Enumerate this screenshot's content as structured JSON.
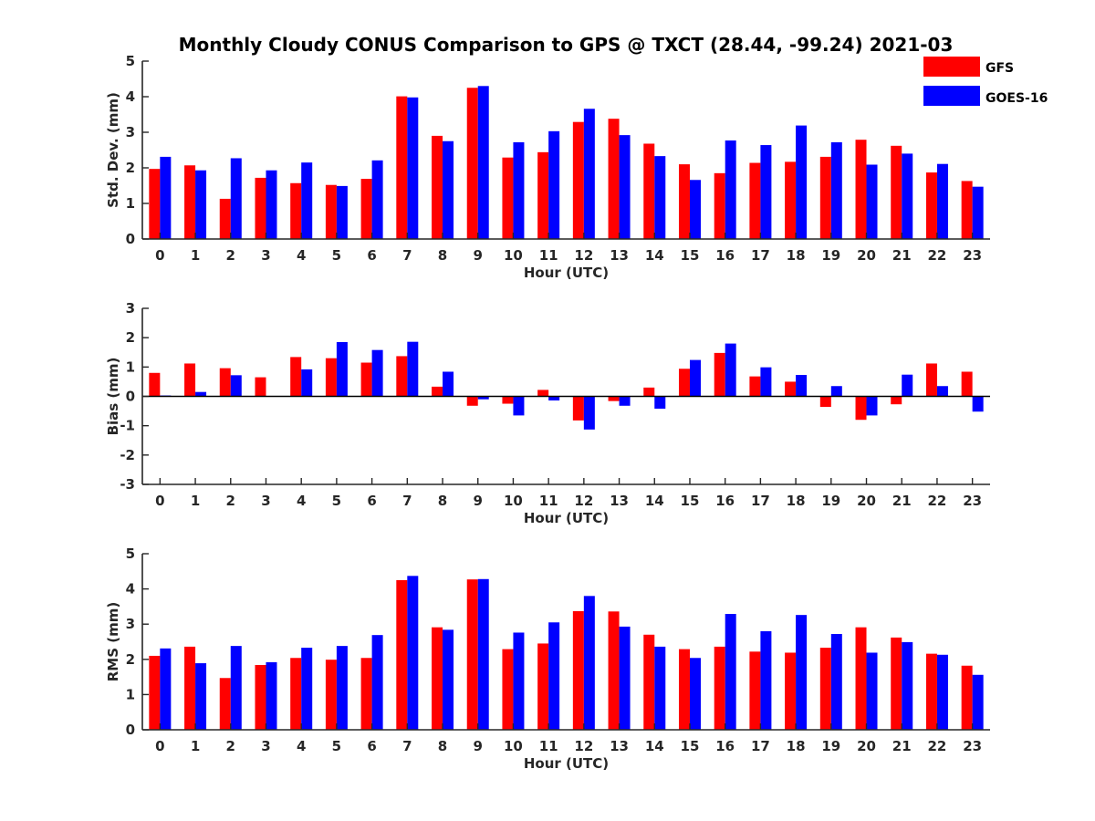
{
  "title": "Monthly Cloudy CONUS Comparison to GPS @ TXCT (28.44, -99.24) 2021-03",
  "colors": {
    "GFS": "#ff0000",
    "GOES-16": "#0000ff",
    "axis": "#262626"
  },
  "legend": {
    "placement": "top-right",
    "entries": [
      "GFS",
      "GOES-16"
    ]
  },
  "chart_data": [
    {
      "type": "bar",
      "ylabel": "Std. Dev. (mm)",
      "xlabel": "Hour (UTC)",
      "ylim": [
        0,
        5
      ],
      "yticks": [
        0,
        1,
        2,
        3,
        4,
        5
      ],
      "categories": [
        "0",
        "1",
        "2",
        "3",
        "4",
        "5",
        "6",
        "7",
        "8",
        "9",
        "10",
        "11",
        "12",
        "13",
        "14",
        "15",
        "16",
        "17",
        "18",
        "19",
        "20",
        "21",
        "22",
        "23"
      ],
      "series": [
        {
          "name": "GFS",
          "values": [
            1.97,
            2.07,
            1.13,
            1.72,
            1.57,
            1.52,
            1.69,
            4.01,
            2.9,
            4.25,
            2.29,
            2.44,
            3.29,
            3.38,
            2.68,
            2.1,
            1.85,
            2.14,
            2.17,
            2.31,
            2.79,
            2.62,
            1.87,
            1.63
          ]
        },
        {
          "name": "GOES-16",
          "values": [
            2.31,
            1.93,
            2.27,
            1.93,
            2.15,
            1.49,
            2.21,
            3.98,
            2.75,
            4.3,
            2.72,
            3.03,
            3.66,
            2.92,
            2.33,
            1.66,
            2.77,
            2.64,
            3.19,
            2.72,
            2.09,
            2.4,
            2.11,
            1.47
          ]
        }
      ]
    },
    {
      "type": "bar",
      "ylabel": "Bias (mm)",
      "xlabel": "Hour (UTC)",
      "ylim": [
        -3,
        3
      ],
      "yticks": [
        -3,
        -2,
        -1,
        0,
        1,
        2,
        3
      ],
      "categories": [
        "0",
        "1",
        "2",
        "3",
        "4",
        "5",
        "6",
        "7",
        "8",
        "9",
        "10",
        "11",
        "12",
        "13",
        "14",
        "15",
        "16",
        "17",
        "18",
        "19",
        "20",
        "21",
        "22",
        "23"
      ],
      "series": [
        {
          "name": "GFS",
          "values": [
            0.8,
            1.12,
            0.96,
            0.65,
            1.34,
            1.3,
            1.15,
            1.37,
            0.33,
            -0.32,
            -0.25,
            0.22,
            -0.82,
            -0.16,
            0.3,
            0.94,
            1.48,
            0.68,
            0.5,
            -0.36,
            -0.8,
            -0.27,
            1.12,
            0.84
          ]
        },
        {
          "name": "GOES-16",
          "values": [
            0.03,
            0.15,
            0.72,
            0.0,
            0.92,
            1.85,
            1.58,
            1.86,
            0.84,
            -0.1,
            -0.65,
            -0.14,
            -1.13,
            -0.32,
            -0.42,
            1.24,
            1.8,
            0.99,
            0.73,
            0.35,
            -0.65,
            0.74,
            0.35,
            -0.52
          ]
        }
      ]
    },
    {
      "type": "bar",
      "ylabel": "RMS (mm)",
      "xlabel": "Hour (UTC)",
      "ylim": [
        0,
        5
      ],
      "yticks": [
        0,
        1,
        2,
        3,
        4,
        5
      ],
      "categories": [
        "0",
        "1",
        "2",
        "3",
        "4",
        "5",
        "6",
        "7",
        "8",
        "9",
        "10",
        "11",
        "12",
        "13",
        "14",
        "15",
        "16",
        "17",
        "18",
        "19",
        "20",
        "21",
        "22",
        "23"
      ],
      "series": [
        {
          "name": "GFS",
          "values": [
            2.1,
            2.36,
            1.47,
            1.84,
            2.04,
            1.99,
            2.04,
            4.25,
            2.91,
            4.27,
            2.29,
            2.45,
            3.37,
            3.36,
            2.7,
            2.29,
            2.36,
            2.22,
            2.19,
            2.33,
            2.91,
            2.62,
            2.16,
            1.82
          ]
        },
        {
          "name": "GOES-16",
          "values": [
            2.31,
            1.89,
            2.38,
            1.92,
            2.33,
            2.38,
            2.69,
            4.37,
            2.84,
            4.28,
            2.76,
            3.05,
            3.8,
            2.93,
            2.36,
            2.04,
            3.29,
            2.8,
            3.26,
            2.72,
            2.19,
            2.49,
            2.13,
            1.56
          ]
        }
      ]
    }
  ]
}
